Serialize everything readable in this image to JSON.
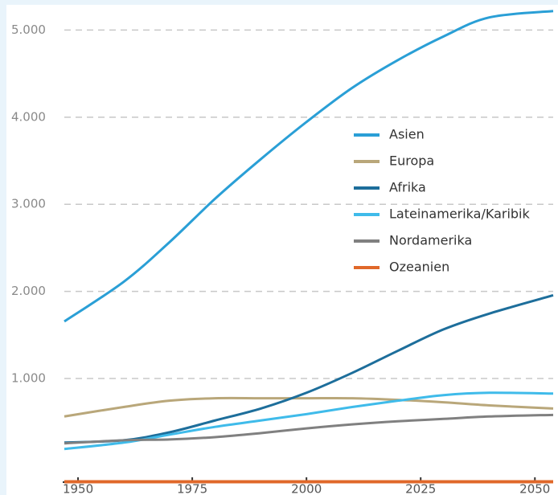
{
  "chart_data": {
    "type": "line",
    "x": [
      1947,
      1960,
      1970,
      1980,
      1990,
      2000,
      2010,
      2020,
      2030,
      2040,
      2054
    ],
    "series": [
      {
        "name": "Asien",
        "color": "#2a9fd6",
        "values": [
          1655,
          2110,
          2564,
          3064,
          3518,
          3945,
          4336,
          4655,
          4927,
          5145,
          5218
        ]
      },
      {
        "name": "Europa",
        "color": "#b9a77a",
        "values": [
          564,
          673,
          745,
          773,
          773,
          773,
          773,
          755,
          727,
          691,
          655
        ]
      },
      {
        "name": "Afrika",
        "color": "#1d6e9b",
        "values": [
          264,
          291,
          382,
          518,
          655,
          836,
          1064,
          1318,
          1564,
          1745,
          1955
        ]
      },
      {
        "name": "Lateinamerika/Karibik",
        "color": "#3fbbea",
        "values": [
          191,
          264,
          355,
          445,
          518,
          591,
          673,
          745,
          809,
          836,
          827
        ]
      },
      {
        "name": "Nordamerika",
        "color": "#808080",
        "values": [
          255,
          291,
          300,
          327,
          373,
          427,
          473,
          509,
          536,
          564,
          582
        ]
      },
      {
        "name": "Ozeanien",
        "color": "#e0682a",
        "values": [
          -185,
          -185,
          -185,
          -185,
          -185,
          -185,
          -185,
          -185,
          -185,
          -185,
          -185
        ]
      }
    ],
    "xlim": [
      1947,
      2054
    ],
    "xticks": [
      1950,
      1975,
      2000,
      2025,
      2050
    ],
    "ylim": [
      -190,
      5290
    ],
    "yticks": [
      {
        "value": 1000,
        "label": "1.000"
      },
      {
        "value": 2000,
        "label": "2.000"
      },
      {
        "value": 3000,
        "label": "3.000"
      },
      {
        "value": 4000,
        "label": "4.000"
      },
      {
        "value": 5000,
        "label": "5.000"
      }
    ],
    "grid": true
  }
}
